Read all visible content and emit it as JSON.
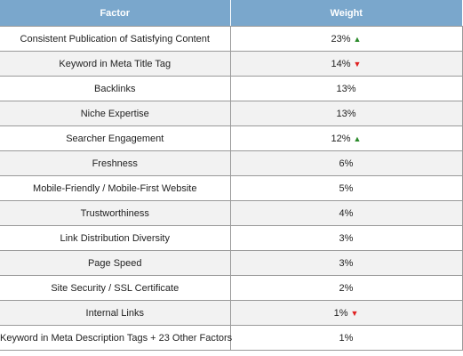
{
  "header": {
    "factor_label": "Factor",
    "weight_label": "Weight"
  },
  "colors": {
    "header_bg": "#7aa7cc",
    "trend_up": "#2a8a2a",
    "trend_down": "#e02020"
  },
  "rows": [
    {
      "factor": "Consistent Publication of Satisfying Content",
      "weight": "23%",
      "trend": "up"
    },
    {
      "factor": "Keyword in Meta Title Tag",
      "weight": "14%",
      "trend": "down"
    },
    {
      "factor": "Backlinks",
      "weight": "13%",
      "trend": ""
    },
    {
      "factor": "Niche Expertise",
      "weight": "13%",
      "trend": ""
    },
    {
      "factor": "Searcher Engagement",
      "weight": "12%",
      "trend": "up"
    },
    {
      "factor": "Freshness",
      "weight": "6%",
      "trend": ""
    },
    {
      "factor": "Mobile-Friendly / Mobile-First Website",
      "weight": "5%",
      "trend": ""
    },
    {
      "factor": "Trustworthiness",
      "weight": "4%",
      "trend": ""
    },
    {
      "factor": "Link Distribution Diversity",
      "weight": "3%",
      "trend": ""
    },
    {
      "factor": "Page Speed",
      "weight": "3%",
      "trend": ""
    },
    {
      "factor": "Site Security / SSL Certificate",
      "weight": "2%",
      "trend": ""
    },
    {
      "factor": "Internal Links",
      "weight": "1%",
      "trend": "down"
    },
    {
      "factor": "Keyword in Meta Description Tags + 23 Other Factors",
      "weight": "1%",
      "trend": ""
    }
  ]
}
